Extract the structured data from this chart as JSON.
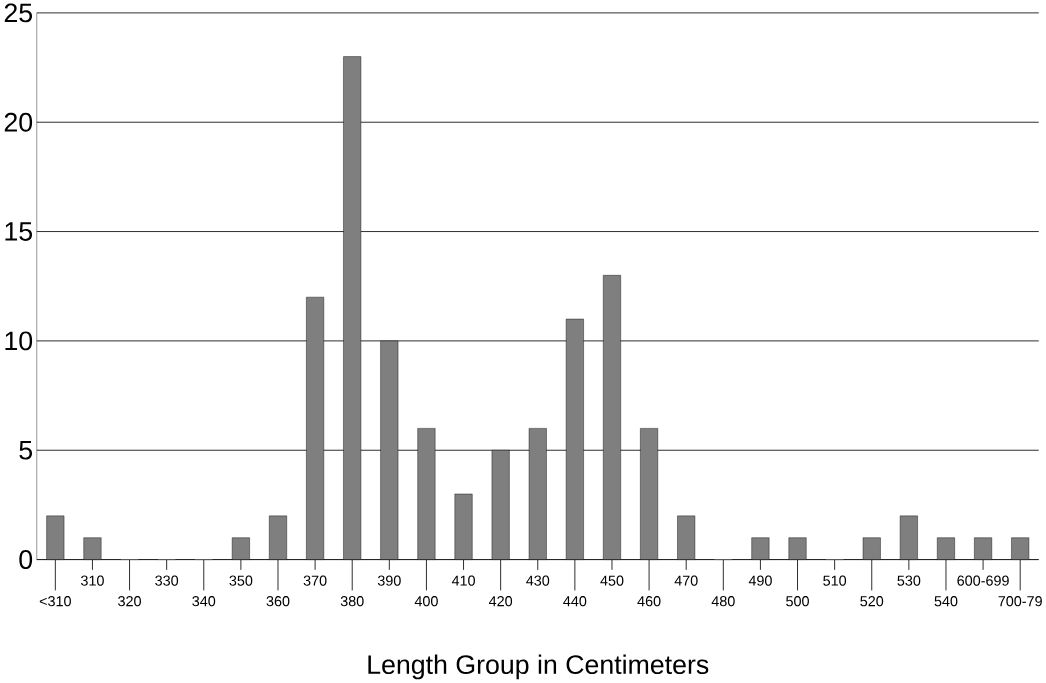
{
  "chart_data": {
    "type": "bar",
    "xlabel": "Length Group in Centimeters",
    "categories": [
      "<310",
      "310",
      "320",
      "330",
      "340",
      "350",
      "360",
      "370",
      "380",
      "390",
      "400",
      "410",
      "420",
      "430",
      "440",
      "450",
      "460",
      "470",
      "480",
      "490",
      "500",
      "510",
      "520",
      "530",
      "540",
      "600-699",
      "700-79"
    ],
    "values": [
      2,
      1,
      0,
      0,
      0,
      1,
      2,
      12,
      23,
      10,
      6,
      3,
      5,
      6,
      11,
      13,
      6,
      2,
      0,
      1,
      1,
      0,
      1,
      2,
      1,
      1,
      1
    ],
    "color": "#7f7f7f",
    "ylim": [
      0,
      25
    ],
    "yticks": [
      0,
      5,
      10,
      15,
      20,
      25
    ],
    "grid": "y"
  }
}
